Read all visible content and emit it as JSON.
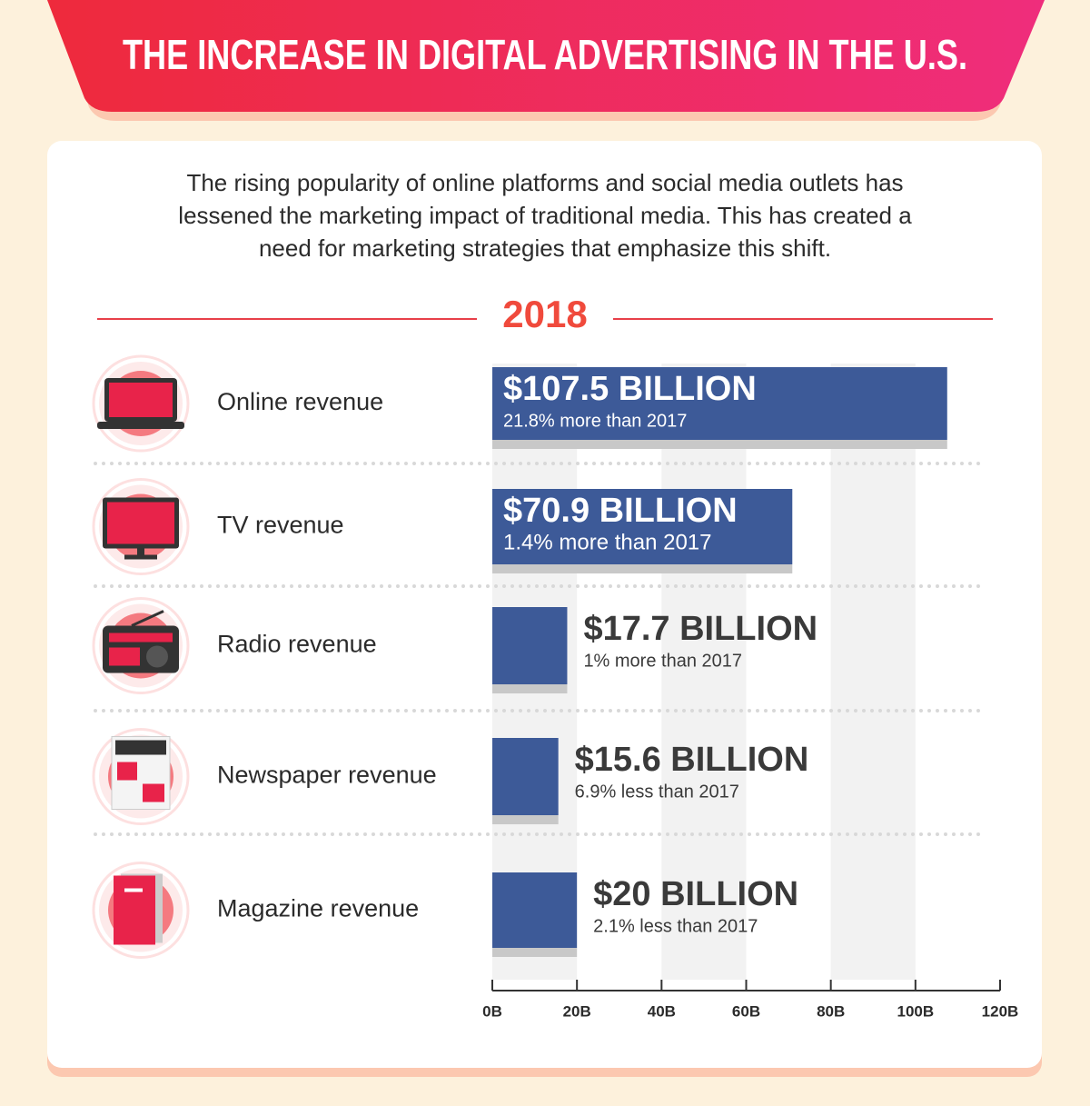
{
  "chart_data": {
    "type": "bar",
    "title": "THE INCREASE IN DIGITAL ADVERTISING IN THE U.S.",
    "description": [
      "The rising popularity of online platforms and social media outlets has",
      "lessened the marketing impact of traditional media. This has created a",
      "need for marketing strategies that emphasize this shift."
    ],
    "year": "2018",
    "categories": [
      "Online revenue",
      "TV revenue",
      "Radio revenue",
      "Newspaper revenue",
      "Magazine revenue"
    ],
    "values": [
      107.5,
      70.9,
      17.7,
      15.6,
      20
    ],
    "value_labels": [
      "$107.5 BILLION",
      "$70.9 BILLION",
      "$17.7 BILLION",
      "$15.6 BILLION",
      "$20 BILLION"
    ],
    "annotations": [
      "21.8% more than 2017",
      "1.4% more than 2017",
      "1% more than 2017",
      "6.9% less than 2017",
      "2.1% less than 2017"
    ],
    "color": "#3d5a98",
    "xlim": [
      0,
      120
    ],
    "xticks": [
      {
        "value": 0,
        "label": "0B"
      },
      {
        "value": 20,
        "label": "20B"
      },
      {
        "value": 40,
        "label": "40B"
      },
      {
        "value": 60,
        "label": "60B"
      },
      {
        "value": 80,
        "label": "80B"
      },
      {
        "value": 100,
        "label": "100B"
      },
      {
        "value": 120,
        "label": "120B"
      }
    ]
  }
}
